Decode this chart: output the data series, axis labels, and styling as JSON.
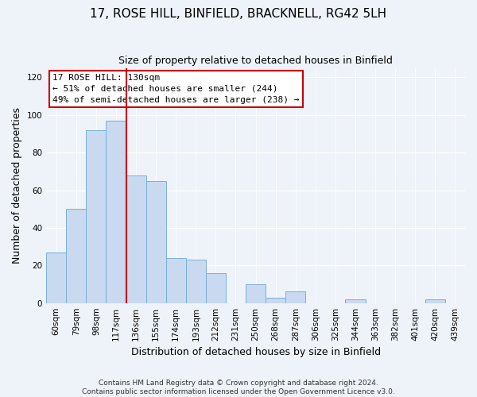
{
  "title": "17, ROSE HILL, BINFIELD, BRACKNELL, RG42 5LH",
  "subtitle": "Size of property relative to detached houses in Binfield",
  "xlabel": "Distribution of detached houses by size in Binfield",
  "ylabel": "Number of detached properties",
  "bar_labels": [
    "60sqm",
    "79sqm",
    "98sqm",
    "117sqm",
    "136sqm",
    "155sqm",
    "174sqm",
    "193sqm",
    "212sqm",
    "231sqm",
    "250sqm",
    "268sqm",
    "287sqm",
    "306sqm",
    "325sqm",
    "344sqm",
    "363sqm",
    "382sqm",
    "401sqm",
    "420sqm",
    "439sqm"
  ],
  "bar_values": [
    27,
    50,
    92,
    97,
    68,
    65,
    24,
    23,
    16,
    0,
    10,
    3,
    6,
    0,
    0,
    2,
    0,
    0,
    0,
    2,
    0
  ],
  "bar_color": "#c9d9f0",
  "bar_edge_color": "#7ab0d8",
  "ylim": [
    0,
    125
  ],
  "yticks": [
    0,
    20,
    40,
    60,
    80,
    100,
    120
  ],
  "vline_index": 4,
  "vline_color": "#cc0000",
  "annotation_title": "17 ROSE HILL: 130sqm",
  "annotation_line1": "← 51% of detached houses are smaller (244)",
  "annotation_line2": "49% of semi-detached houses are larger (238) →",
  "annotation_box_color": "#cc0000",
  "footnote1": "Contains HM Land Registry data © Crown copyright and database right 2024.",
  "footnote2": "Contains public sector information licensed under the Open Government Licence v3.0.",
  "background_color": "#eef2f9",
  "title_fontsize": 11,
  "subtitle_fontsize": 9,
  "axis_label_fontsize": 9,
  "tick_fontsize": 7.5,
  "annotation_fontsize": 8,
  "footnote_fontsize": 6.5
}
